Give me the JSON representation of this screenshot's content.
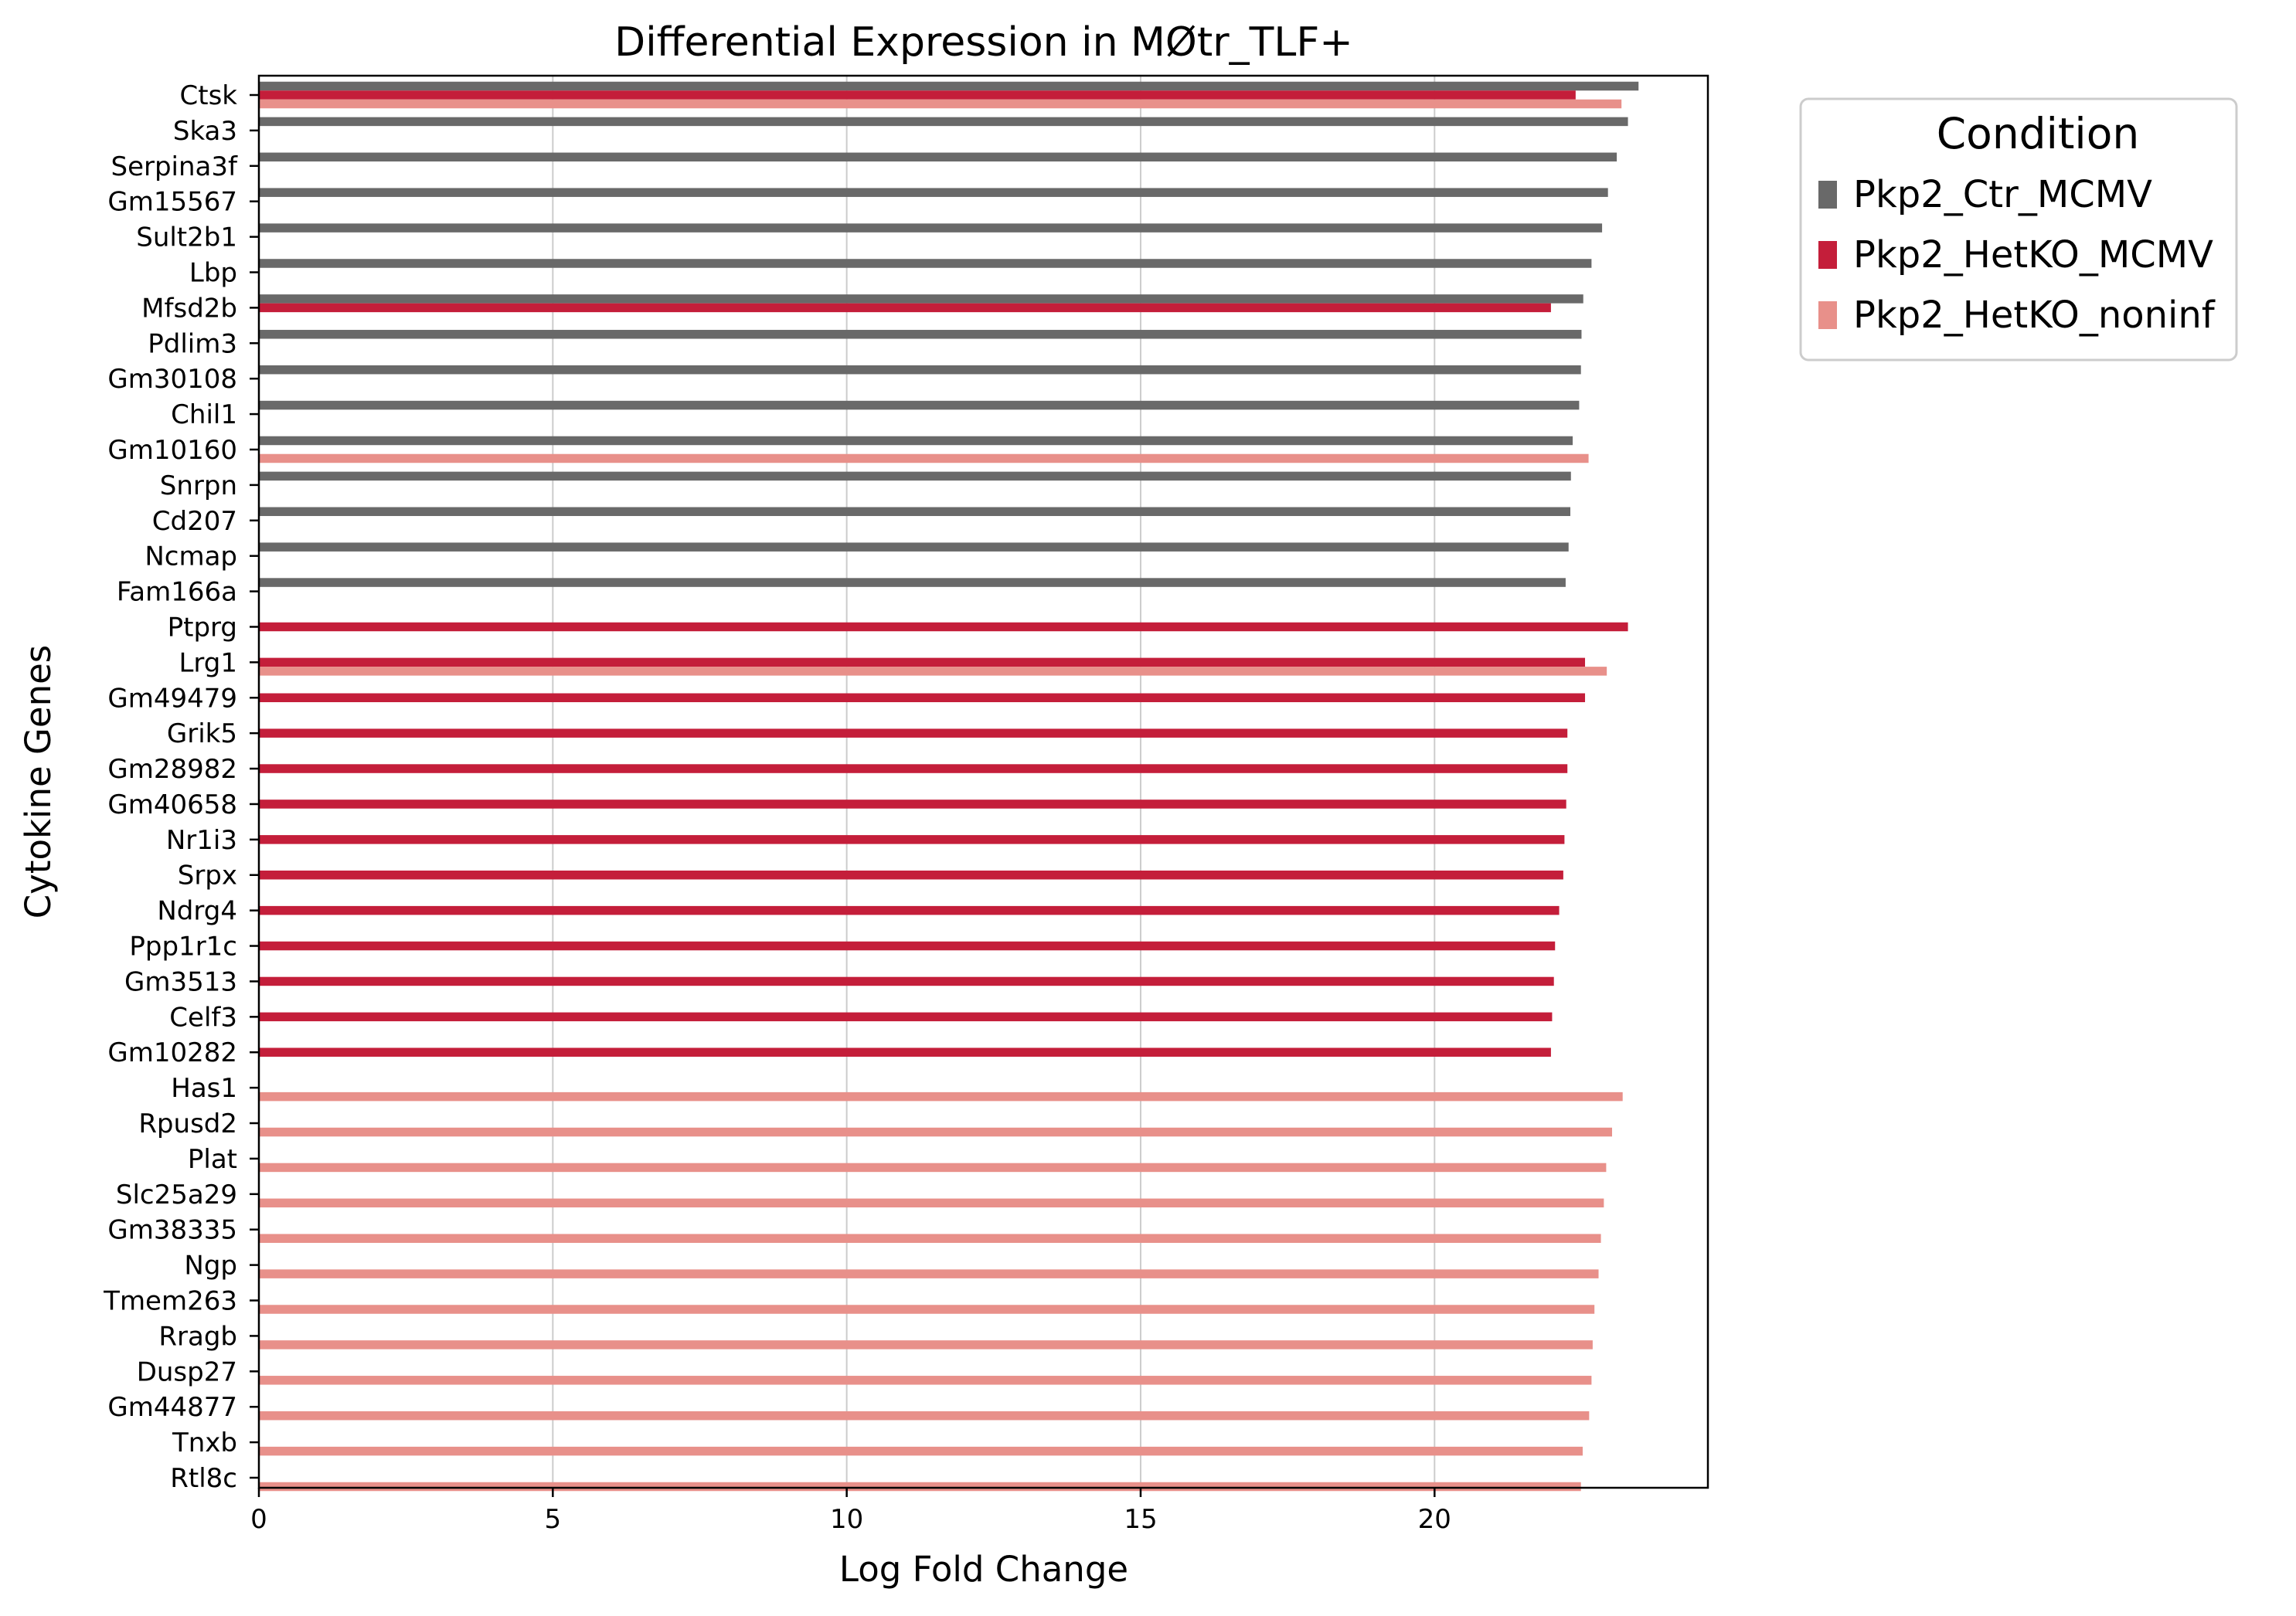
{
  "chart_data": {
    "type": "bar",
    "orientation": "horizontal",
    "title": "Differential Expression in MØtr_TLF+",
    "xlabel": "Log Fold Change",
    "ylabel": "Cytokine Genes",
    "xlim": [
      0,
      24.65
    ],
    "xticks": [
      0,
      5,
      10,
      15,
      20
    ],
    "grid": "x",
    "legend": {
      "title": "Condition",
      "placement": "outside-top-right"
    },
    "categories": [
      "Ctsk",
      "Ska3",
      "Serpina3f",
      "Gm15567",
      "Sult2b1",
      "Lbp",
      "Mfsd2b",
      "Pdlim3",
      "Gm30108",
      "Chil1",
      "Gm10160",
      "Snrpn",
      "Cd207",
      "Ncmap",
      "Fam166a",
      "Ptprg",
      "Lrg1",
      "Gm49479",
      "Grik5",
      "Gm28982",
      "Gm40658",
      "Nr1i3",
      "Srpx",
      "Ndrg4",
      "Ppp1r1c",
      "Gm3513",
      "Celf3",
      "Gm10282",
      "Has1",
      "Rpusd2",
      "Plat",
      "Slc25a29",
      "Gm38335",
      "Ngp",
      "Tmem263",
      "Rragb",
      "Dusp27",
      "Gm44877",
      "Tnxb",
      "Rtl8c"
    ],
    "series": [
      {
        "name": "Pkp2_Ctr_MCMV",
        "color": "#696969",
        "values": [
          23.47,
          23.29,
          23.1,
          22.95,
          22.85,
          22.67,
          22.53,
          22.5,
          22.49,
          22.46,
          22.35,
          22.32,
          22.31,
          22.28,
          22.23,
          null,
          null,
          null,
          null,
          null,
          null,
          null,
          null,
          null,
          null,
          null,
          null,
          null,
          null,
          null,
          null,
          null,
          null,
          null,
          null,
          null,
          null,
          null,
          null,
          null
        ]
      },
      {
        "name": "Pkp2_HetKO_MCMV",
        "color": "#c41e3a",
        "values": [
          22.4,
          null,
          null,
          null,
          null,
          null,
          21.98,
          null,
          null,
          null,
          null,
          null,
          null,
          null,
          null,
          23.29,
          22.56,
          22.56,
          22.26,
          22.26,
          22.24,
          22.21,
          22.19,
          22.12,
          22.05,
          22.03,
          22.0,
          21.98,
          null,
          null,
          null,
          null,
          null,
          null,
          null,
          null,
          null,
          null,
          null,
          null
        ]
      },
      {
        "name": "Pkp2_HetKO_noninf",
        "color": "#e8908a",
        "values": [
          23.18,
          null,
          null,
          null,
          null,
          null,
          null,
          null,
          null,
          null,
          22.62,
          null,
          null,
          null,
          null,
          null,
          22.93,
          null,
          null,
          null,
          null,
          null,
          null,
          null,
          null,
          null,
          null,
          null,
          23.2,
          23.02,
          22.92,
          22.88,
          22.83,
          22.79,
          22.72,
          22.69,
          22.67,
          22.63,
          22.52,
          22.49
        ]
      }
    ]
  }
}
